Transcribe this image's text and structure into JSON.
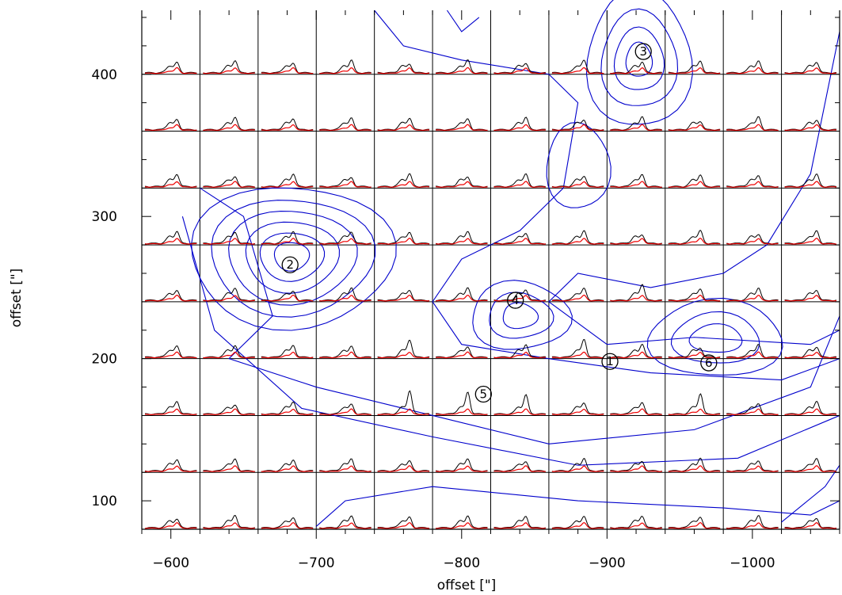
{
  "chart_data": {
    "type": "line",
    "description_grid": "map of spectra, one black and one red spectrum per cell",
    "xlabel": "offset [\"]",
    "ylabel": "offset [\"]",
    "xlim": [
      -580,
      -1060
    ],
    "ylim": [
      80,
      445
    ],
    "x_ticks": [
      -600,
      -700,
      -800,
      -900,
      -1000
    ],
    "x_tick_labels": [
      "−600",
      "−700",
      "−800",
      "−900",
      "−1000"
    ],
    "y_ticks": [
      100,
      200,
      300,
      400
    ],
    "y_tick_labels": [
      "100",
      "200",
      "300",
      "400"
    ],
    "grid_x_boundaries": [
      -620,
      -660,
      -700,
      -740,
      -780,
      -820,
      -860,
      -900,
      -940,
      -980,
      -1020
    ],
    "grid_y_boundaries": [
      120,
      160,
      200,
      240,
      280,
      320,
      360,
      400
    ],
    "series": [
      {
        "name": "",
        "color": "#000000"
      },
      {
        "name": "",
        "color": "#ee0000"
      }
    ],
    "contour_color": "#0000cc",
    "markers": [
      {
        "label": "1",
        "x": -902,
        "y": 198
      },
      {
        "label": "2",
        "x": -682,
        "y": 266
      },
      {
        "label": "3",
        "x": -925,
        "y": 416
      },
      {
        "label": "4",
        "x": -837,
        "y": 241
      },
      {
        "label": "5",
        "x": -815,
        "y": 175
      },
      {
        "label": "6",
        "x": -970,
        "y": 197
      }
    ]
  }
}
